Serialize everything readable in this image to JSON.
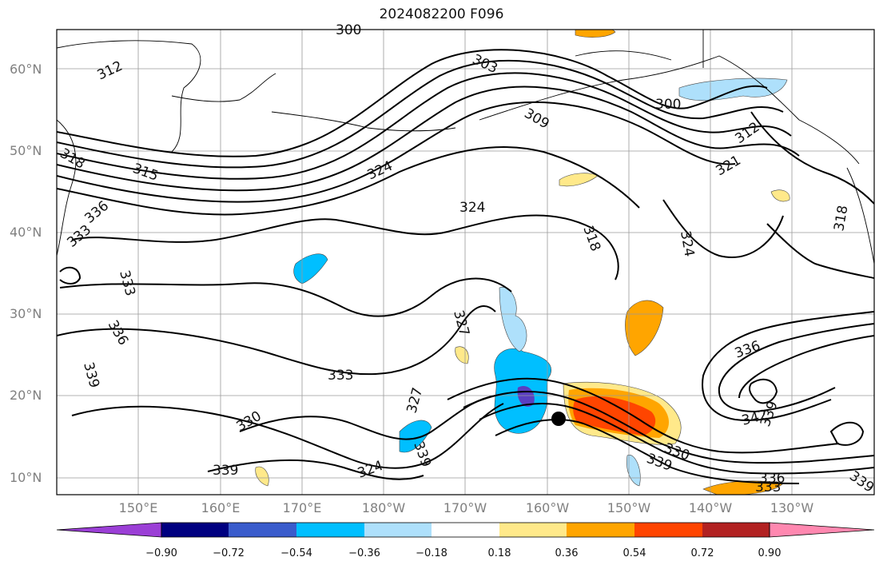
{
  "title": "2024082200 F096",
  "lat_labels": [
    "60°N",
    "50°N",
    "40°N",
    "30°N",
    "20°N",
    "10°N"
  ],
  "lon_labels": [
    "150°E",
    "160°E",
    "170°E",
    "180°W",
    "170°W",
    "160°W",
    "150°W",
    "140°W",
    "130°W"
  ],
  "colorbar": {
    "ticks": [
      "−0.90",
      "−0.72",
      "−0.54",
      "−0.36",
      "−0.18",
      "0.18",
      "0.36",
      "0.54",
      "0.72",
      "0.90"
    ],
    "colors": [
      "#9b3fd6",
      "#000080",
      "#3a5ccc",
      "#00bfff",
      "#aee0fb",
      "#ffffff",
      "#ffe98a",
      "#ffa500",
      "#ff4500",
      "#b22222",
      "#ff88b0"
    ]
  },
  "contour_labels": [
    "300",
    "303",
    "309",
    "312",
    "315",
    "318",
    "321",
    "324",
    "327",
    "330",
    "333",
    "336",
    "339",
    "342"
  ],
  "cyclone_marker": "tropical-cyclone-position"
}
